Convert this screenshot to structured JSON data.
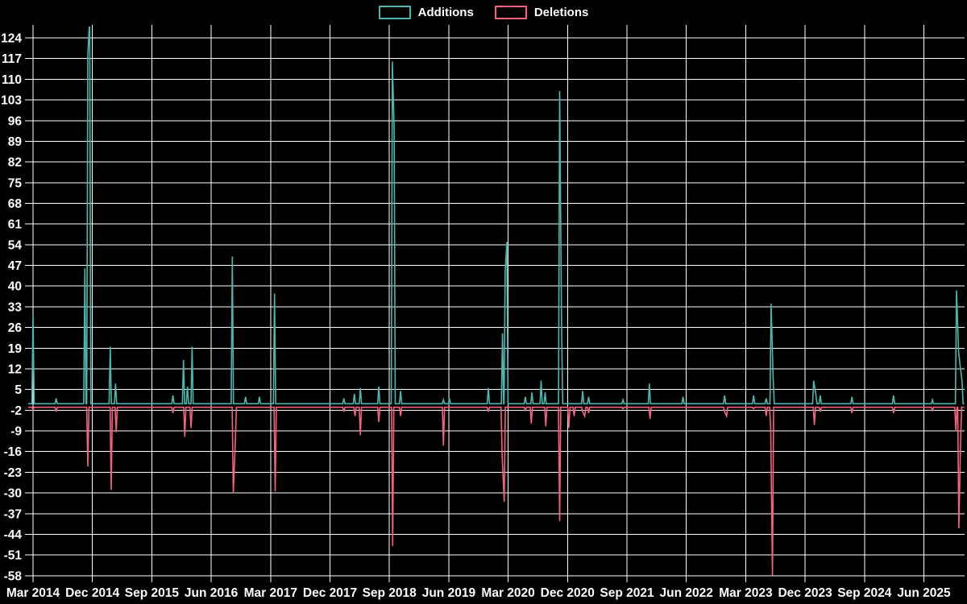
{
  "legend": {
    "additions_label": "Additions",
    "deletions_label": "Deletions"
  },
  "colors": {
    "background": "#000000",
    "grid": "#ffffff",
    "text": "#ffffff",
    "additions": "#4ab8ae",
    "deletions": "#f4627f"
  },
  "chart_data": {
    "type": "line",
    "title": "",
    "xlabel": "",
    "ylabel": "",
    "legend_position": "top-center",
    "grid": true,
    "ylim": [
      -58,
      124
    ],
    "y_tick_step": 7,
    "y_ticks": [
      124,
      117,
      110,
      103,
      96,
      89,
      82,
      75,
      68,
      61,
      54,
      47,
      40,
      33,
      26,
      19,
      12,
      5,
      -2,
      -9,
      -16,
      -23,
      -30,
      -37,
      -44,
      -51,
      -58
    ],
    "x_unit": "months since Mar 2014",
    "xlim_months": [
      -0.75,
      141.1
    ],
    "x_ticks": [
      {
        "label": "Mar 2014",
        "m": 0
      },
      {
        "label": "Dec 2014",
        "m": 9
      },
      {
        "label": "Sep 2015",
        "m": 18
      },
      {
        "label": "Jun 2016",
        "m": 27
      },
      {
        "label": "Mar 2017",
        "m": 36
      },
      {
        "label": "Dec 2017",
        "m": 45
      },
      {
        "label": "Sep 2018",
        "m": 54
      },
      {
        "label": "Jun 2019",
        "m": 63
      },
      {
        "label": "Mar 2020",
        "m": 72
      },
      {
        "label": "Dec 2020",
        "m": 81
      },
      {
        "label": "Sep 2021",
        "m": 90
      },
      {
        "label": "Jun 2022",
        "m": 99
      },
      {
        "label": "Mar 2023",
        "m": 108
      },
      {
        "label": "Dec 2023",
        "m": 117
      },
      {
        "label": "Sep 2024",
        "m": 126
      },
      {
        "label": "Jun 2025",
        "m": 135
      }
    ],
    "series": [
      {
        "name": "Additions",
        "color_key": "additions",
        "baseline": 0.2,
        "spikes": [
          [
            0,
            30
          ],
          [
            3.5,
            2
          ],
          [
            7.85,
            46
          ],
          [
            8.3,
            118
          ],
          [
            8.58,
            131
          ],
          [
            11.7,
            19.5
          ],
          [
            12.5,
            7
          ],
          [
            21.2,
            3
          ],
          [
            22.8,
            15
          ],
          [
            23.4,
            6
          ],
          [
            24.1,
            19.5
          ],
          [
            30.2,
            50
          ],
          [
            32.2,
            2.5
          ],
          [
            34.3,
            2.5
          ],
          [
            36.6,
            37.5
          ],
          [
            47.1,
            2
          ],
          [
            48.7,
            3.5
          ],
          [
            49.6,
            5.5
          ],
          [
            52.4,
            6
          ],
          [
            54.45,
            116
          ],
          [
            54.72,
            93
          ],
          [
            55.7,
            4.5
          ],
          [
            62.2,
            1.5
          ],
          [
            63.1,
            2
          ],
          [
            69,
            5.5
          ],
          [
            71.15,
            24
          ],
          [
            71.55,
            45
          ],
          [
            71.8,
            55
          ],
          [
            74.6,
            2.5
          ],
          [
            75.6,
            4
          ],
          [
            77,
            8
          ],
          [
            77.6,
            4
          ],
          [
            79.8,
            106
          ],
          [
            80.1,
            26
          ],
          [
            83.3,
            4.5
          ],
          [
            84.2,
            2.5
          ],
          [
            89.4,
            1.5
          ],
          [
            93.4,
            7
          ],
          [
            98.5,
            2.5
          ],
          [
            104.8,
            3
          ],
          [
            109.2,
            3
          ],
          [
            111.1,
            2
          ],
          [
            111.85,
            34
          ],
          [
            112.15,
            9
          ],
          [
            118.3,
            8
          ],
          [
            118.62,
            3.5
          ],
          [
            119.3,
            3
          ],
          [
            124.1,
            2.5
          ],
          [
            130.4,
            3
          ],
          [
            136.3,
            1.5
          ],
          [
            139.95,
            38.5
          ],
          [
            140.25,
            18
          ],
          [
            140.5,
            13
          ],
          [
            140.78,
            8
          ]
        ]
      },
      {
        "name": "Deletions",
        "color_key": "deletions",
        "baseline": -1,
        "spikes": [
          [
            0,
            -1.8
          ],
          [
            3.5,
            -2.5
          ],
          [
            8.3,
            -21
          ],
          [
            11.85,
            -29
          ],
          [
            12.6,
            -9.5
          ],
          [
            21.2,
            -3
          ],
          [
            23,
            -11
          ],
          [
            23.95,
            -8
          ],
          [
            30.35,
            -30
          ],
          [
            30.65,
            -13
          ],
          [
            36.7,
            -29.5
          ],
          [
            47.1,
            -2.5
          ],
          [
            48.8,
            -4
          ],
          [
            49.6,
            -10.5
          ],
          [
            52.4,
            -6
          ],
          [
            54.5,
            -48
          ],
          [
            55.7,
            -4
          ],
          [
            62.2,
            -14
          ],
          [
            69,
            -2.5
          ],
          [
            71.1,
            -18
          ],
          [
            71.4,
            -33
          ],
          [
            74.6,
            -2
          ],
          [
            75.5,
            -6.5
          ],
          [
            77.7,
            -7.5
          ],
          [
            79.8,
            -39.5
          ],
          [
            81.2,
            -8
          ],
          [
            82,
            -4
          ],
          [
            83.3,
            -2.5
          ],
          [
            83.6,
            -4
          ],
          [
            84.2,
            -3
          ],
          [
            89.4,
            -1.5
          ],
          [
            93.5,
            -5
          ],
          [
            104.8,
            -2.5
          ],
          [
            105.1,
            -4
          ],
          [
            109.2,
            -1.5
          ],
          [
            111.1,
            -4
          ],
          [
            111.78,
            -8
          ],
          [
            112.05,
            -58
          ],
          [
            118.4,
            -7
          ],
          [
            119.3,
            -2.5
          ],
          [
            124.1,
            -3
          ],
          [
            130.4,
            -3
          ],
          [
            136.3,
            -2
          ],
          [
            139.85,
            -9
          ],
          [
            140.3,
            -42
          ],
          [
            140.55,
            -14
          ]
        ]
      }
    ]
  }
}
